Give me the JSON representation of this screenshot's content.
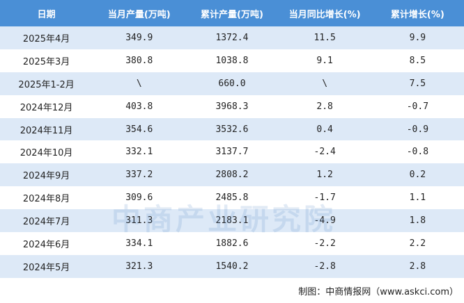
{
  "table": {
    "header": [
      "日期",
      "当月产量(万吨)",
      "累计产量(万吨)",
      "当月同比增长(%)",
      "累计增长(%)"
    ],
    "rows": [
      [
        "2025年4月",
        "349.9",
        "1372.4",
        "11.5",
        "9.9"
      ],
      [
        "2025年3月",
        "380.8",
        "1038.8",
        "9.1",
        "8.5"
      ],
      [
        "2025年1-2月",
        "\\",
        "660.0",
        "\\",
        "7.5"
      ],
      [
        "2024年12月",
        "403.8",
        "3968.3",
        "2.8",
        "-0.7"
      ],
      [
        "2024年11月",
        "354.6",
        "3532.6",
        "0.4",
        "-0.9"
      ],
      [
        "2024年10月",
        "332.1",
        "3137.7",
        "-2.4",
        "-0.8"
      ],
      [
        "2024年9月",
        "337.2",
        "2808.2",
        "1.2",
        "0.2"
      ],
      [
        "2024年8月",
        "309.6",
        "2485.8",
        "-1.7",
        "1.1"
      ],
      [
        "2024年7月",
        "311.3",
        "2183.1",
        "-4.9",
        "1.8"
      ],
      [
        "2024年6月",
        "334.1",
        "1882.6",
        "-2.2",
        "2.2"
      ],
      [
        "2024年5月",
        "321.3",
        "1540.2",
        "-2.8",
        "2.8"
      ]
    ]
  },
  "watermark": "中商产业研究院",
  "footer": "制图：中商情报网（www.askci.com）"
}
